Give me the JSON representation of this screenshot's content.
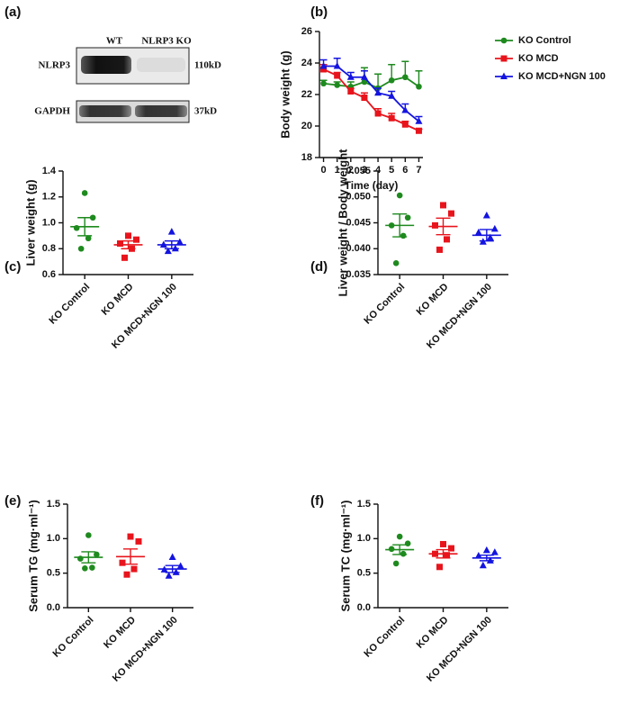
{
  "blot": {
    "panel_label": "(a)",
    "lanes": [
      "WT",
      "NLRP3 KO"
    ],
    "rows": [
      {
        "protein": "NLRP3",
        "size": "110kD"
      },
      {
        "protein": "GAPDH",
        "size": "37kD"
      }
    ]
  },
  "chart_data": [
    {
      "type": "line",
      "panel_label": "(b)",
      "x_label": "Time (day)",
      "y_label": "Body weight (g)",
      "x": [
        0,
        1,
        2,
        3,
        4,
        5,
        6,
        7
      ],
      "xlim": [
        -0.3,
        7.3
      ],
      "xticks": [
        0,
        1,
        2,
        3,
        4,
        5,
        6,
        7
      ],
      "ylim": [
        18,
        26
      ],
      "yticks": [
        18,
        20,
        22,
        24,
        26
      ],
      "legend": "right",
      "series": [
        {
          "name": "KO Control",
          "color": "#1e8a1e",
          "marker": "circle",
          "values": [
            22.7,
            22.6,
            22.5,
            22.8,
            22.4,
            22.9,
            23.1,
            22.5
          ],
          "errors": [
            0.2,
            0.2,
            0.3,
            0.9,
            0.9,
            1.0,
            1.0,
            1.0
          ]
        },
        {
          "name": "KO MCD",
          "color": "#e8141c",
          "marker": "square",
          "values": [
            23.6,
            23.2,
            22.2,
            21.8,
            20.8,
            20.5,
            20.1,
            19.7
          ],
          "errors": [
            0.3,
            0.2,
            0.2,
            0.3,
            0.3,
            0.3,
            0.2,
            0.1
          ]
        },
        {
          "name": "KO MCD+NGN 100",
          "color": "#1414e0",
          "marker": "triangle",
          "values": [
            23.8,
            23.8,
            23.1,
            23.1,
            22.1,
            21.9,
            21.0,
            20.3
          ],
          "errors": [
            0.4,
            0.5,
            0.3,
            0.4,
            0.3,
            0.3,
            0.4,
            0.3
          ]
        }
      ]
    },
    {
      "type": "dotplot",
      "panel_label": "(c)",
      "y_label": "Liver  weight (g)",
      "ylim": [
        0.6,
        1.4
      ],
      "yticks": [
        0.6,
        0.8,
        {
          "value": 1.0,
          "label": "1.0"
        },
        1.2,
        1.4
      ],
      "groups": [
        {
          "name": "KO Control",
          "color": "#1e8a1e",
          "marker": "circle",
          "values": [
            1.23,
            1.04,
            0.96,
            0.88,
            0.8
          ],
          "mean": 0.97,
          "sem": 0.07
        },
        {
          "name": "KO MCD",
          "color": "#e8141c",
          "marker": "square",
          "values": [
            0.9,
            0.87,
            0.84,
            0.8,
            0.73
          ],
          "mean": 0.83,
          "sem": 0.03
        },
        {
          "name": "KO MCD+NGN 100",
          "color": "#1414e0",
          "marker": "triangle",
          "values": [
            0.93,
            0.85,
            0.83,
            0.8,
            0.78
          ],
          "mean": 0.83,
          "sem": 0.03
        }
      ]
    },
    {
      "type": "dotplot",
      "panel_label": "(d)",
      "y_label": "Liver weight / Body weight",
      "ylim": [
        0.035,
        0.055
      ],
      "yticks": [
        0.035,
        {
          "value": 0.04,
          "label": "0.040"
        },
        0.045,
        {
          "value": 0.05,
          "label": "0.050"
        },
        0.055
      ],
      "groups": [
        {
          "name": "KO Control",
          "color": "#1e8a1e",
          "marker": "circle",
          "values": [
            0.0503,
            0.046,
            0.0445,
            0.0425,
            0.0372
          ],
          "mean": 0.0445,
          "sem": 0.0022
        },
        {
          "name": "KO MCD",
          "color": "#e8141c",
          "marker": "square",
          "values": [
            0.0484,
            0.0468,
            0.0445,
            0.0418,
            0.0398
          ],
          "mean": 0.0443,
          "sem": 0.0016
        },
        {
          "name": "KO MCD+NGN 100",
          "color": "#1414e0",
          "marker": "triangle",
          "values": [
            0.0464,
            0.0438,
            0.0431,
            0.0421,
            0.0413
          ],
          "mean": 0.0426,
          "sem": 0.0011
        }
      ]
    },
    {
      "type": "dotplot",
      "panel_label": "(e)",
      "y_label": "Serum TG (mg·ml⁻¹)",
      "ylim": [
        0,
        1.5
      ],
      "yticks": [
        {
          "value": 0,
          "label": "0.0"
        },
        0.5,
        {
          "value": 1.0,
          "label": "1.0"
        },
        1.5
      ],
      "groups": [
        {
          "name": "KO Control",
          "color": "#1e8a1e",
          "marker": "circle",
          "values": [
            1.05,
            0.77,
            0.71,
            0.58,
            0.57
          ],
          "mean": 0.73,
          "sem": 0.08
        },
        {
          "name": "KO MCD",
          "color": "#e8141c",
          "marker": "square",
          "values": [
            1.03,
            0.96,
            0.65,
            0.56,
            0.48
          ],
          "mean": 0.74,
          "sem": 0.11
        },
        {
          "name": "KO MCD+NGN 100",
          "color": "#1414e0",
          "marker": "triangle",
          "values": [
            0.73,
            0.6,
            0.55,
            0.51,
            0.46
          ],
          "mean": 0.56,
          "sem": 0.05
        }
      ]
    },
    {
      "type": "dotplot",
      "panel_label": "(f)",
      "y_label": "Serum TC (mg·ml⁻¹)",
      "ylim": [
        0,
        1.5
      ],
      "yticks": [
        {
          "value": 0,
          "label": "0.0"
        },
        0.5,
        {
          "value": 1.0,
          "label": "1.0"
        },
        1.5
      ],
      "groups": [
        {
          "name": "KO Control",
          "color": "#1e8a1e",
          "marker": "circle",
          "values": [
            1.03,
            0.93,
            0.85,
            0.78,
            0.64
          ],
          "mean": 0.84,
          "sem": 0.07
        },
        {
          "name": "KO MCD",
          "color": "#e8141c",
          "marker": "square",
          "values": [
            0.92,
            0.86,
            0.78,
            0.76,
            0.59
          ],
          "mean": 0.78,
          "sem": 0.06
        },
        {
          "name": "KO MCD+NGN 100",
          "color": "#1414e0",
          "marker": "triangle",
          "values": [
            0.83,
            0.8,
            0.75,
            0.68,
            0.61
          ],
          "mean": 0.72,
          "sem": 0.04
        }
      ]
    }
  ]
}
